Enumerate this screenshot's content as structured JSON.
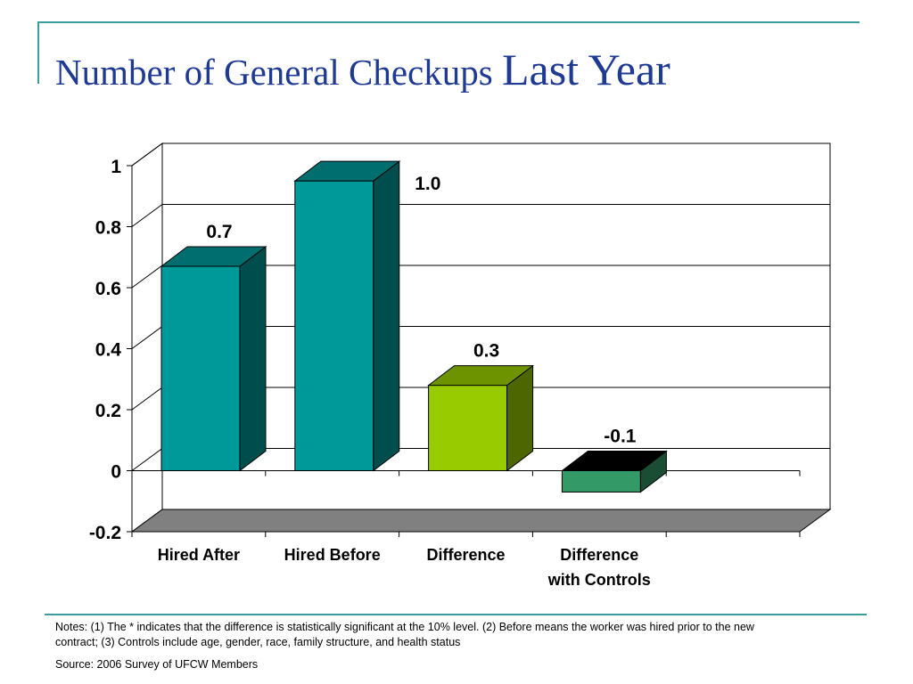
{
  "slide": {
    "title_part1": "Number of General Checkups",
    "title_part2": "Last Year",
    "notes": "Notes: (1) The * indicates that the difference is statistically significant at the 10% level. (2) Before means the worker was hired prior to the new contract; (3) Controls include age, gender, race, family structure, and health status",
    "source": "Source: 2006 Survey of UFCW Members"
  },
  "chart_data": {
    "type": "bar",
    "title": "Number of General Checkups Last Year",
    "xlabel": "",
    "ylabel": "",
    "categories": [
      [
        "Hired After"
      ],
      [
        "Hired Before"
      ],
      [
        "Difference"
      ],
      [
        "Difference",
        "with Controls"
      ]
    ],
    "values": [
      0.67,
      0.95,
      0.28,
      -0.07
    ],
    "value_labels": [
      "0.7",
      "1.0",
      "0.3",
      "-0.1"
    ],
    "colors": [
      "#009999",
      "#009999",
      "#99cc00",
      "#339966"
    ],
    "ylim": [
      -0.2,
      1
    ],
    "yticks": [
      1,
      0.8,
      0.6,
      0.4,
      0.2,
      0,
      -0.2
    ],
    "ytick_labels": [
      "1",
      "0.8",
      "0.6",
      "0.4",
      "0.2",
      "0",
      "-0.2"
    ],
    "grid": true,
    "style": "3d"
  }
}
